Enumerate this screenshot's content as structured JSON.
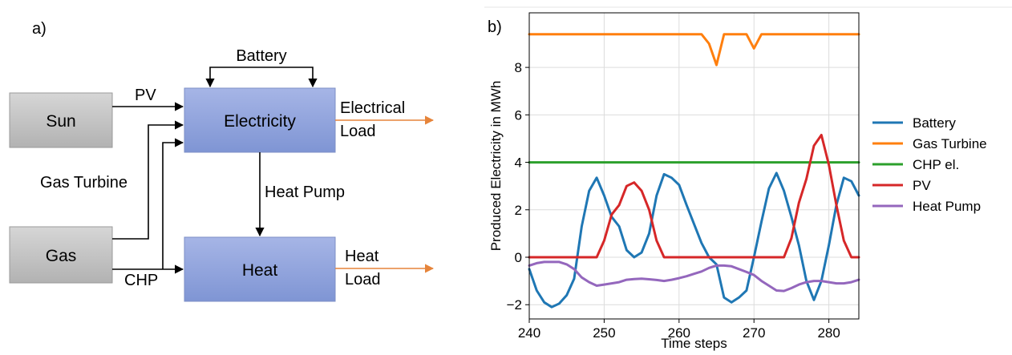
{
  "panel_a": {
    "label": "a)",
    "nodes": {
      "sun": "Sun",
      "gas": "Gas",
      "electricity": "Electricity",
      "heat": "Heat"
    },
    "flows": {
      "pv": "PV",
      "battery": "Battery",
      "gas_turbine": "Gas Turbine",
      "chp": "CHP",
      "heat_pump": "Heat Pump",
      "electrical_load_line1": "Electrical",
      "electrical_load_line2": "Load",
      "heat_load_line1": "Heat",
      "heat_load_line2": "Load"
    },
    "colors": {
      "source_box": "#c4c4c4",
      "node_box": "#8fa3db",
      "load_arrow": "#e6843a"
    }
  },
  "panel_b": {
    "label": "b)",
    "chart_data": {
      "type": "line",
      "title": "",
      "xlabel": "Time steps",
      "ylabel": "Produced Electricity in MWh",
      "xlim": [
        240,
        284
      ],
      "ylim": [
        -2.6,
        10.3
      ],
      "xticks": [
        240,
        250,
        260,
        270,
        280
      ],
      "yticks": [
        -2,
        0,
        2,
        4,
        6,
        8
      ],
      "ytick_labels": [
        "−2",
        "0",
        "2",
        "4",
        "6",
        "8"
      ],
      "grid": true,
      "legend": "right-outside",
      "x": [
        240,
        241,
        242,
        243,
        244,
        245,
        246,
        247,
        248,
        249,
        250,
        251,
        252,
        253,
        254,
        255,
        256,
        257,
        258,
        259,
        260,
        261,
        262,
        263,
        264,
        265,
        266,
        267,
        268,
        269,
        270,
        271,
        272,
        273,
        274,
        275,
        276,
        277,
        278,
        279,
        280,
        281,
        282,
        283,
        284
      ],
      "series": [
        {
          "name": "Battery",
          "color": "#1f77b4",
          "values": [
            -0.5,
            -1.4,
            -1.9,
            -2.1,
            -1.95,
            -1.6,
            -0.9,
            1.3,
            2.8,
            3.35,
            2.6,
            1.7,
            1.3,
            0.3,
            0.0,
            0.2,
            1.0,
            2.6,
            3.5,
            3.35,
            3.05,
            2.2,
            1.4,
            0.6,
            0.0,
            -0.3,
            -1.7,
            -1.9,
            -1.7,
            -1.4,
            0.0,
            1.5,
            2.9,
            3.55,
            2.8,
            1.7,
            0.5,
            -1.0,
            -1.8,
            -1.0,
            0.5,
            2.2,
            3.35,
            3.2,
            2.6
          ]
        },
        {
          "name": "Gas Turbine",
          "color": "#ff7f0e",
          "values": [
            9.4,
            9.4,
            9.4,
            9.4,
            9.4,
            9.4,
            9.4,
            9.4,
            9.4,
            9.4,
            9.4,
            9.4,
            9.4,
            9.4,
            9.4,
            9.4,
            9.4,
            9.4,
            9.4,
            9.4,
            9.4,
            9.4,
            9.4,
            9.4,
            9.0,
            8.1,
            9.4,
            9.4,
            9.4,
            9.4,
            8.8,
            9.4,
            9.4,
            9.4,
            9.4,
            9.4,
            9.4,
            9.4,
            9.4,
            9.4,
            9.4,
            9.4,
            9.4,
            9.4,
            9.4
          ]
        },
        {
          "name": "CHP el.",
          "color": "#2ca02c",
          "values": [
            4,
            4,
            4,
            4,
            4,
            4,
            4,
            4,
            4,
            4,
            4,
            4,
            4,
            4,
            4,
            4,
            4,
            4,
            4,
            4,
            4,
            4,
            4,
            4,
            4,
            4,
            4,
            4,
            4,
            4,
            4,
            4,
            4,
            4,
            4,
            4,
            4,
            4,
            4,
            4,
            4,
            4,
            4,
            4,
            4
          ]
        },
        {
          "name": "PV",
          "color": "#d62728",
          "values": [
            0,
            0,
            0,
            0,
            0,
            0,
            0,
            0,
            0,
            0,
            0.7,
            1.8,
            2.2,
            3.0,
            3.15,
            2.8,
            2.0,
            0.7,
            0,
            0,
            0,
            0,
            0,
            0,
            0,
            0,
            0,
            0,
            0,
            0,
            0,
            0,
            0,
            0,
            0,
            0.8,
            2.3,
            3.3,
            4.7,
            5.15,
            3.9,
            2.2,
            0.7,
            0,
            0
          ]
        },
        {
          "name": "Heat Pump",
          "color": "#9467bd",
          "values": [
            -0.35,
            -0.25,
            -0.2,
            -0.2,
            -0.2,
            -0.3,
            -0.5,
            -0.85,
            -1.05,
            -1.2,
            -1.15,
            -1.1,
            -1.05,
            -0.95,
            -0.92,
            -0.9,
            -0.93,
            -0.96,
            -1.0,
            -0.95,
            -0.88,
            -0.8,
            -0.7,
            -0.6,
            -0.45,
            -0.35,
            -0.35,
            -0.38,
            -0.5,
            -0.62,
            -0.75,
            -1.0,
            -1.2,
            -1.4,
            -1.42,
            -1.3,
            -1.15,
            -1.05,
            -1.0,
            -1.0,
            -1.05,
            -1.1,
            -1.1,
            -1.05,
            -0.95
          ]
        }
      ]
    }
  }
}
